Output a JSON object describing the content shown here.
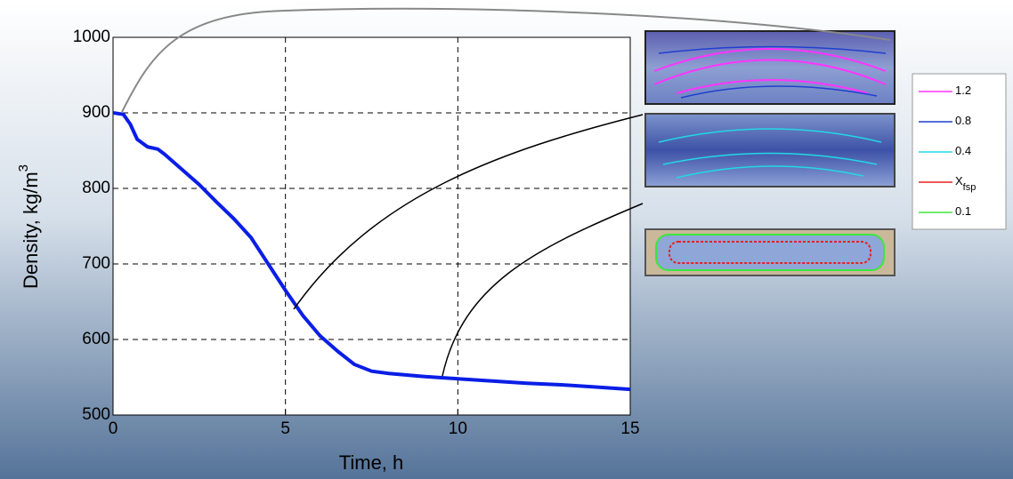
{
  "chart_data": {
    "type": "line",
    "x_label": "Time, h",
    "y_label": {
      "text": "Density, kg/m",
      "superscript": "3"
    },
    "x": [
      0,
      0.3,
      0.5,
      0.7,
      1,
      1.3,
      1.5,
      2,
      2.5,
      3,
      3.5,
      4,
      4.5,
      5,
      5.5,
      6,
      6.5,
      7,
      7.5,
      8,
      9,
      10,
      11,
      12,
      13,
      14,
      15
    ],
    "series": [
      {
        "color": "#0a1ee6",
        "values": [
          900,
          898,
          885,
          865,
          855,
          852,
          845,
          825,
          805,
          782,
          760,
          735,
          700,
          665,
          632,
          605,
          585,
          567,
          558,
          555,
          551,
          548,
          545,
          542,
          540,
          537,
          534
        ]
      }
    ],
    "xlim": [
      0,
      15
    ],
    "xticks": [
      0,
      5,
      10,
      15
    ],
    "ylim": [
      500,
      1000
    ],
    "yticks": [
      500,
      600,
      700,
      800,
      900,
      1000
    ],
    "grid": true,
    "inset_legend": [
      {
        "label": "1.2",
        "color": "#ff33ff"
      },
      {
        "label": "0.8",
        "color": "#1f3fd0"
      },
      {
        "label": "0.4",
        "color": "#22d8e6"
      },
      {
        "label": "X",
        "subscript": "fsp",
        "color": "#e82020"
      },
      {
        "label": "0.1",
        "color": "#3ee63e"
      }
    ]
  }
}
